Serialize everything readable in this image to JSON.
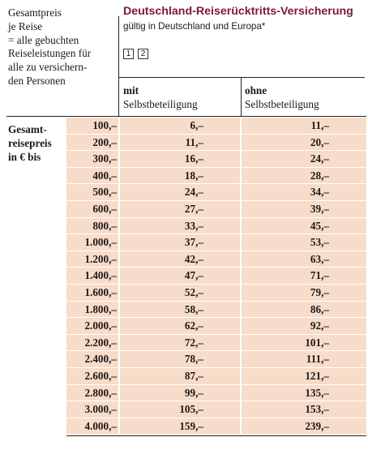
{
  "price_caption": [
    "Gesamtpreis",
    "je Reise",
    "= alle gebuchten",
    "Reiseleistungen für",
    "alle zu versichern-",
    "den Personen"
  ],
  "insurance": {
    "title": "Deutschland-Reiserücktritts-Versicherung",
    "subtitle": "gültig in Deutschland und Europa*",
    "notes": [
      "1",
      "2"
    ]
  },
  "columns": [
    {
      "line1": "mit",
      "line2": "Selbstbeteiligung"
    },
    {
      "line1": "ohne",
      "line2": "Selbstbeteiligung"
    }
  ],
  "row_label": [
    "Gesamt-",
    "reisepreis",
    "in € bis"
  ],
  "table_rows": [
    {
      "price": "100,–",
      "with": "6,–",
      "without": "11,–"
    },
    {
      "price": "200,–",
      "with": "11,–",
      "without": "20,–"
    },
    {
      "price": "300,–",
      "with": "16,–",
      "without": "24,–"
    },
    {
      "price": "400,–",
      "with": "18,–",
      "without": "28,–"
    },
    {
      "price": "500,–",
      "with": "24,–",
      "without": "34,–"
    },
    {
      "price": "600,–",
      "with": "27,–",
      "without": "39,–"
    },
    {
      "price": "800,–",
      "with": "33,–",
      "without": "45,–"
    },
    {
      "price": "1.000,–",
      "with": "37,–",
      "without": "53,–"
    },
    {
      "price": "1.200,–",
      "with": "42,–",
      "without": "63,–"
    },
    {
      "price": "1.400,–",
      "with": "47,–",
      "without": "71,–"
    },
    {
      "price": "1.600,–",
      "with": "52,–",
      "without": "79,–"
    },
    {
      "price": "1.800,–",
      "with": "58,–",
      "without": "86,–"
    },
    {
      "price": "2.000,–",
      "with": "62,–",
      "without": "92,–"
    },
    {
      "price": "2.200,–",
      "with": "72,–",
      "without": "101,–"
    },
    {
      "price": "2.400,–",
      "with": "78,–",
      "without": "111,–"
    },
    {
      "price": "2.600,–",
      "with": "87,–",
      "without": "121,–"
    },
    {
      "price": "2.800,–",
      "with": "99,–",
      "without": "135,–"
    },
    {
      "price": "3.000,–",
      "with": "105,–",
      "without": "153,–"
    },
    {
      "price": "4.000,–",
      "with": "159,–",
      "without": "239,–"
    }
  ]
}
